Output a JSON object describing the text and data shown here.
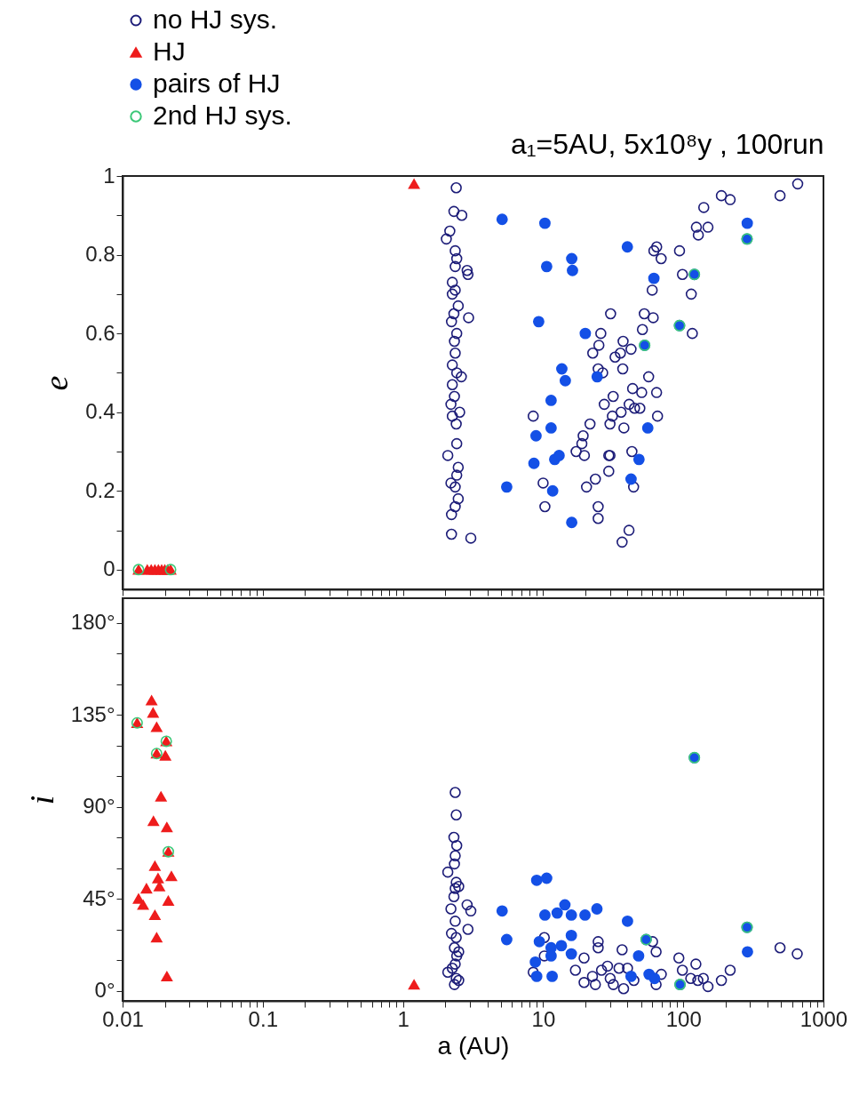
{
  "chart_data": [
    {
      "type": "scatter",
      "title": "a₁=5AU, 5x10⁸y , 100run",
      "ylabel": "e",
      "legend": "top left",
      "tick_labels": "y",
      "xlim": [
        0.01,
        1000
      ],
      "log": "x",
      "ylim": [
        -0.05,
        1
      ],
      "xticks": [
        0.01,
        {
          "value": 0.02,
          "label": null
        },
        {
          "value": 0.03,
          "label": null
        },
        {
          "value": 0.04,
          "label": null
        },
        {
          "value": 0.05,
          "label": null
        },
        {
          "value": 0.06,
          "label": null
        },
        {
          "value": 0.07,
          "label": null
        },
        {
          "value": 0.08,
          "label": null
        },
        {
          "value": 0.09,
          "label": null
        },
        0.1,
        {
          "value": 0.2,
          "label": null
        },
        {
          "value": 0.3,
          "label": null
        },
        {
          "value": 0.4,
          "label": null
        },
        {
          "value": 0.5,
          "label": null
        },
        {
          "value": 0.6,
          "label": null
        },
        {
          "value": 0.7,
          "label": null
        },
        {
          "value": 0.8,
          "label": null
        },
        {
          "value": 0.9,
          "label": null
        },
        1,
        {
          "value": 2,
          "label": null
        },
        {
          "value": 3,
          "label": null
        },
        {
          "value": 4,
          "label": null
        },
        {
          "value": 5,
          "label": null
        },
        {
          "value": 6,
          "label": null
        },
        {
          "value": 7,
          "label": null
        },
        {
          "value": 8,
          "label": null
        },
        {
          "value": 9,
          "label": null
        },
        10,
        {
          "value": 20,
          "label": null
        },
        {
          "value": 30,
          "label": null
        },
        {
          "value": 40,
          "label": null
        },
        {
          "value": 50,
          "label": null
        },
        {
          "value": 60,
          "label": null
        },
        {
          "value": 70,
          "label": null
        },
        {
          "value": 80,
          "label": null
        },
        {
          "value": 90,
          "label": null
        },
        100,
        {
          "value": 200,
          "label": null
        },
        {
          "value": 300,
          "label": null
        },
        {
          "value": 400,
          "label": null
        },
        {
          "value": 500,
          "label": null
        },
        {
          "value": 600,
          "label": null
        },
        {
          "value": 700,
          "label": null
        },
        {
          "value": 800,
          "label": null
        },
        {
          "value": 900,
          "label": null
        },
        1000
      ],
      "yticks": [
        0,
        {
          "value": 0.1,
          "label": null
        },
        0.2,
        {
          "value": 0.3,
          "label": null
        },
        0.4,
        {
          "value": 0.5,
          "label": null
        },
        0.6,
        {
          "value": 0.7,
          "label": null
        },
        0.8,
        {
          "value": 0.9,
          "label": null
        },
        1
      ],
      "series": [
        {
          "name": "no HJ sys.",
          "color": "#1c1c78",
          "marker": "circle",
          "x": [
            2.4,
            2.31,
            2.63,
            2.16,
            2.04,
            2.36,
            2.42,
            2.36,
            2.87,
            2.91,
            2.25,
            2.36,
            2.25,
            2.48,
            2.94,
            2.31,
            2.22,
            2.42,
            2.33,
            2.36,
            2.25,
            2.42,
            2.61,
            2.25,
            2.33,
            2.2,
            2.54,
            2.25,
            2.4,
            2.42,
            2.09,
            2.48,
            2.42,
            2.2,
            2.36,
            2.48,
            2.36,
            2.22,
            2.22,
            3.05,
            8.5,
            21.6,
            19.3,
            18.9,
            17.2,
            19.7,
            30.3,
            25.8,
            25,
            22.6,
            32.6,
            35.6,
            37.2,
            42.4,
            24.7,
            26.6,
            37,
            56.6,
            64.5,
            50.5,
            43.5,
            31.6,
            27.3,
            41.1,
            44.9,
            49,
            36,
            31.2,
            30,
            37.7,
            65.5,
            60,
            64.6,
            61.7,
            69.5,
            52.7,
            61,
            51.1,
            94,
            98.6,
            114,
            116,
            124,
            128,
            150,
            140,
            187,
            216,
            490,
            655,
            10,
            10.3,
            20.4,
            23.6,
            29.4,
            24.7,
            24.7,
            29.4,
            30,
            43,
            44.2,
            41,
            36.6
          ],
          "values": [
            0.97,
            0.91,
            0.9,
            0.86,
            0.84,
            0.81,
            0.79,
            0.77,
            0.76,
            0.75,
            0.73,
            0.71,
            0.7,
            0.67,
            0.64,
            0.65,
            0.63,
            0.6,
            0.58,
            0.55,
            0.52,
            0.5,
            0.49,
            0.47,
            0.44,
            0.42,
            0.4,
            0.39,
            0.37,
            0.32,
            0.29,
            0.26,
            0.24,
            0.22,
            0.21,
            0.18,
            0.16,
            0.14,
            0.09,
            0.08,
            0.39,
            0.37,
            0.34,
            0.32,
            0.3,
            0.29,
            0.65,
            0.6,
            0.57,
            0.55,
            0.54,
            0.55,
            0.58,
            0.56,
            0.51,
            0.5,
            0.51,
            0.49,
            0.45,
            0.45,
            0.46,
            0.44,
            0.42,
            0.42,
            0.41,
            0.41,
            0.4,
            0.39,
            0.37,
            0.36,
            0.39,
            0.71,
            0.82,
            0.81,
            0.79,
            0.65,
            0.64,
            0.61,
            0.81,
            0.75,
            0.7,
            0.6,
            0.87,
            0.85,
            0.87,
            0.92,
            0.95,
            0.94,
            0.95,
            0.98,
            0.22,
            0.16,
            0.21,
            0.23,
            0.25,
            0.16,
            0.13,
            0.29,
            0.29,
            0.3,
            0.21,
            0.1,
            0.07
          ]
        },
        {
          "name": "HJ",
          "color": "#ee1c1c",
          "marker": "triangle",
          "x": [
            0.013,
            0.015,
            0.016,
            0.017,
            0.018,
            0.019,
            0.02,
            0.021,
            0.022,
            1.2
          ],
          "values": [
            0,
            0,
            0,
            0,
            0,
            0,
            0,
            0,
            0,
            0.98
          ]
        },
        {
          "name": "pairs of HJ",
          "color": "#1450e6",
          "marker": "circle",
          "x": [
            5.1,
            10.3,
            39.9,
            10.6,
            16,
            16.2,
            61.7,
            120,
            286,
            285,
            94,
            53,
            9.3,
            20,
            13.6,
            14.4,
            24.3,
            11.4,
            11.4,
            55.8,
            8.9,
            8.6,
            12.1,
            13,
            48.3,
            5.5,
            11.7,
            42.4,
            16
          ],
          "values": [
            0.89,
            0.88,
            0.82,
            0.77,
            0.79,
            0.76,
            0.74,
            0.75,
            0.88,
            0.84,
            0.62,
            0.57,
            0.63,
            0.6,
            0.51,
            0.48,
            0.49,
            0.43,
            0.36,
            0.36,
            0.34,
            0.27,
            0.28,
            0.29,
            0.28,
            0.21,
            0.2,
            0.23,
            0.12
          ]
        },
        {
          "name": "2nd HJ sys.",
          "color": "#3cc878",
          "marker": "circle",
          "x": [
            0.013,
            0.022,
            53,
            94,
            120,
            285
          ],
          "values": [
            0,
            0,
            0.57,
            0.62,
            0.75,
            0.84
          ]
        }
      ]
    },
    {
      "type": "scatter",
      "xlabel": "a (AU)",
      "ylabel": "i",
      "xlim": [
        0.01,
        1000
      ],
      "log": "x",
      "ylim": [
        -5,
        192
      ],
      "xticks": [
        0.01,
        {
          "value": 0.02,
          "label": null
        },
        {
          "value": 0.03,
          "label": null
        },
        {
          "value": 0.04,
          "label": null
        },
        {
          "value": 0.05,
          "label": null
        },
        {
          "value": 0.06,
          "label": null
        },
        {
          "value": 0.07,
          "label": null
        },
        {
          "value": 0.08,
          "label": null
        },
        {
          "value": 0.09,
          "label": null
        },
        0.1,
        {
          "value": 0.2,
          "label": null
        },
        {
          "value": 0.3,
          "label": null
        },
        {
          "value": 0.4,
          "label": null
        },
        {
          "value": 0.5,
          "label": null
        },
        {
          "value": 0.6,
          "label": null
        },
        {
          "value": 0.7,
          "label": null
        },
        {
          "value": 0.8,
          "label": null
        },
        {
          "value": 0.9,
          "label": null
        },
        1,
        {
          "value": 2,
          "label": null
        },
        {
          "value": 3,
          "label": null
        },
        {
          "value": 4,
          "label": null
        },
        {
          "value": 5,
          "label": null
        },
        {
          "value": 6,
          "label": null
        },
        {
          "value": 7,
          "label": null
        },
        {
          "value": 8,
          "label": null
        },
        {
          "value": 9,
          "label": null
        },
        10,
        {
          "value": 20,
          "label": null
        },
        {
          "value": 30,
          "label": null
        },
        {
          "value": 40,
          "label": null
        },
        {
          "value": 50,
          "label": null
        },
        {
          "value": 60,
          "label": null
        },
        {
          "value": 70,
          "label": null
        },
        {
          "value": 80,
          "label": null
        },
        {
          "value": 90,
          "label": null
        },
        100,
        {
          "value": 200,
          "label": null
        },
        {
          "value": 300,
          "label": null
        },
        {
          "value": 400,
          "label": null
        },
        {
          "value": 500,
          "label": null
        },
        {
          "value": 600,
          "label": null
        },
        {
          "value": 700,
          "label": null
        },
        {
          "value": 800,
          "label": null
        },
        {
          "value": 900,
          "label": null
        },
        1000
      ],
      "yticks": [
        {
          "value": 0,
          "label": "0°"
        },
        {
          "value": 15,
          "label": null
        },
        {
          "value": 30,
          "label": null
        },
        {
          "value": 45,
          "label": "45°"
        },
        {
          "value": 60,
          "label": null
        },
        {
          "value": 75,
          "label": null
        },
        {
          "value": 90,
          "label": "90°"
        },
        {
          "value": 105,
          "label": null
        },
        {
          "value": 120,
          "label": null
        },
        {
          "value": 135,
          "label": "135°"
        },
        {
          "value": 150,
          "label": null
        },
        {
          "value": 165,
          "label": null
        },
        {
          "value": 180,
          "label": "180°"
        }
      ],
      "series": [
        {
          "name": "no HJ sys.",
          "color": "#1c1c78",
          "marker": "circle",
          "x": [
            2.36,
            2.4,
            2.31,
            2.42,
            2.36,
            2.33,
            2.09,
            2.4,
            2.36,
            2.31,
            2.87,
            3.05,
            2.36,
            2.91,
            2.4,
            2.33,
            2.42,
            2.36,
            2.09,
            2.4,
            2.33,
            2.22,
            2.5,
            2.25,
            2.5,
            2.2,
            2.5,
            10.2,
            10.2,
            8.5,
            17,
            19.6,
            19.6,
            22.5,
            23.6,
            26.1,
            28.8,
            30.1,
            31.7,
            36.6,
            37.5,
            34.8,
            40,
            44.4,
            24.7,
            24.7,
            64,
            64,
            60.4,
            69.7,
            93,
            98.5,
            123,
            127,
            113,
            139,
            150,
            187,
            216,
            490,
            650
          ],
          "values": [
            97,
            86,
            75,
            71,
            66,
            62,
            58,
            53,
            50,
            46,
            42,
            39,
            34,
            30,
            26,
            21,
            17,
            13,
            9,
            6,
            3,
            28,
            19,
            11,
            5,
            40,
            51,
            26,
            17,
            9,
            10,
            16,
            4,
            7,
            3,
            10,
            12,
            6,
            3,
            20,
            1,
            11,
            11,
            5,
            24,
            21,
            19,
            3,
            24,
            8,
            16,
            10,
            13,
            5,
            6,
            6,
            2,
            5,
            10,
            21,
            18
          ]
        },
        {
          "name": "HJ",
          "color": "#ee1c1c",
          "marker": "triangle",
          "x": [
            0.0161,
            0.0165,
            0.0175,
            0.0127,
            0.0205,
            0.0175,
            0.0202,
            0.0188,
            0.0166,
            0.0207,
            0.0212,
            0.017,
            0.0223,
            0.0179,
            0.0148,
            0.0183,
            0.013,
            0.014,
            0.0212,
            0.017,
            0.0175,
            0.0207,
            1.2
          ],
          "values": [
            142,
            136,
            129,
            131,
            122,
            116,
            115,
            95,
            83,
            80,
            68,
            61,
            56,
            55,
            50,
            51,
            45,
            42,
            44,
            37,
            26,
            7,
            3
          ]
        },
        {
          "name": "pairs of HJ",
          "color": "#1450e6",
          "marker": "circle",
          "x": [
            120,
            5.1,
            5.5,
            9,
            10.6,
            10.3,
            12.6,
            14.3,
            15.9,
            19.9,
            24.2,
            40,
            9.4,
            15.9,
            13.5,
            11.4,
            11.4,
            15.9,
            8.8,
            9,
            11.6,
            54.3,
            48,
            42.4,
            57,
            62.4,
            94.8,
            285,
            287
          ],
          "values": [
            114,
            39,
            25,
            54,
            55,
            37,
            38,
            42,
            37,
            37,
            40,
            34,
            24,
            27,
            22,
            21,
            17,
            18,
            14,
            7,
            7,
            25,
            17,
            7,
            8,
            6,
            3,
            31,
            19
          ]
        },
        {
          "name": "2nd HJ sys.",
          "color": "#3cc878",
          "marker": "circle",
          "x": [
            0.0127,
            0.0205,
            0.0175,
            0.0212,
            120,
            54.3,
            94.8,
            285
          ],
          "values": [
            131,
            122,
            116,
            68,
            114,
            25,
            3,
            31
          ]
        }
      ]
    }
  ]
}
